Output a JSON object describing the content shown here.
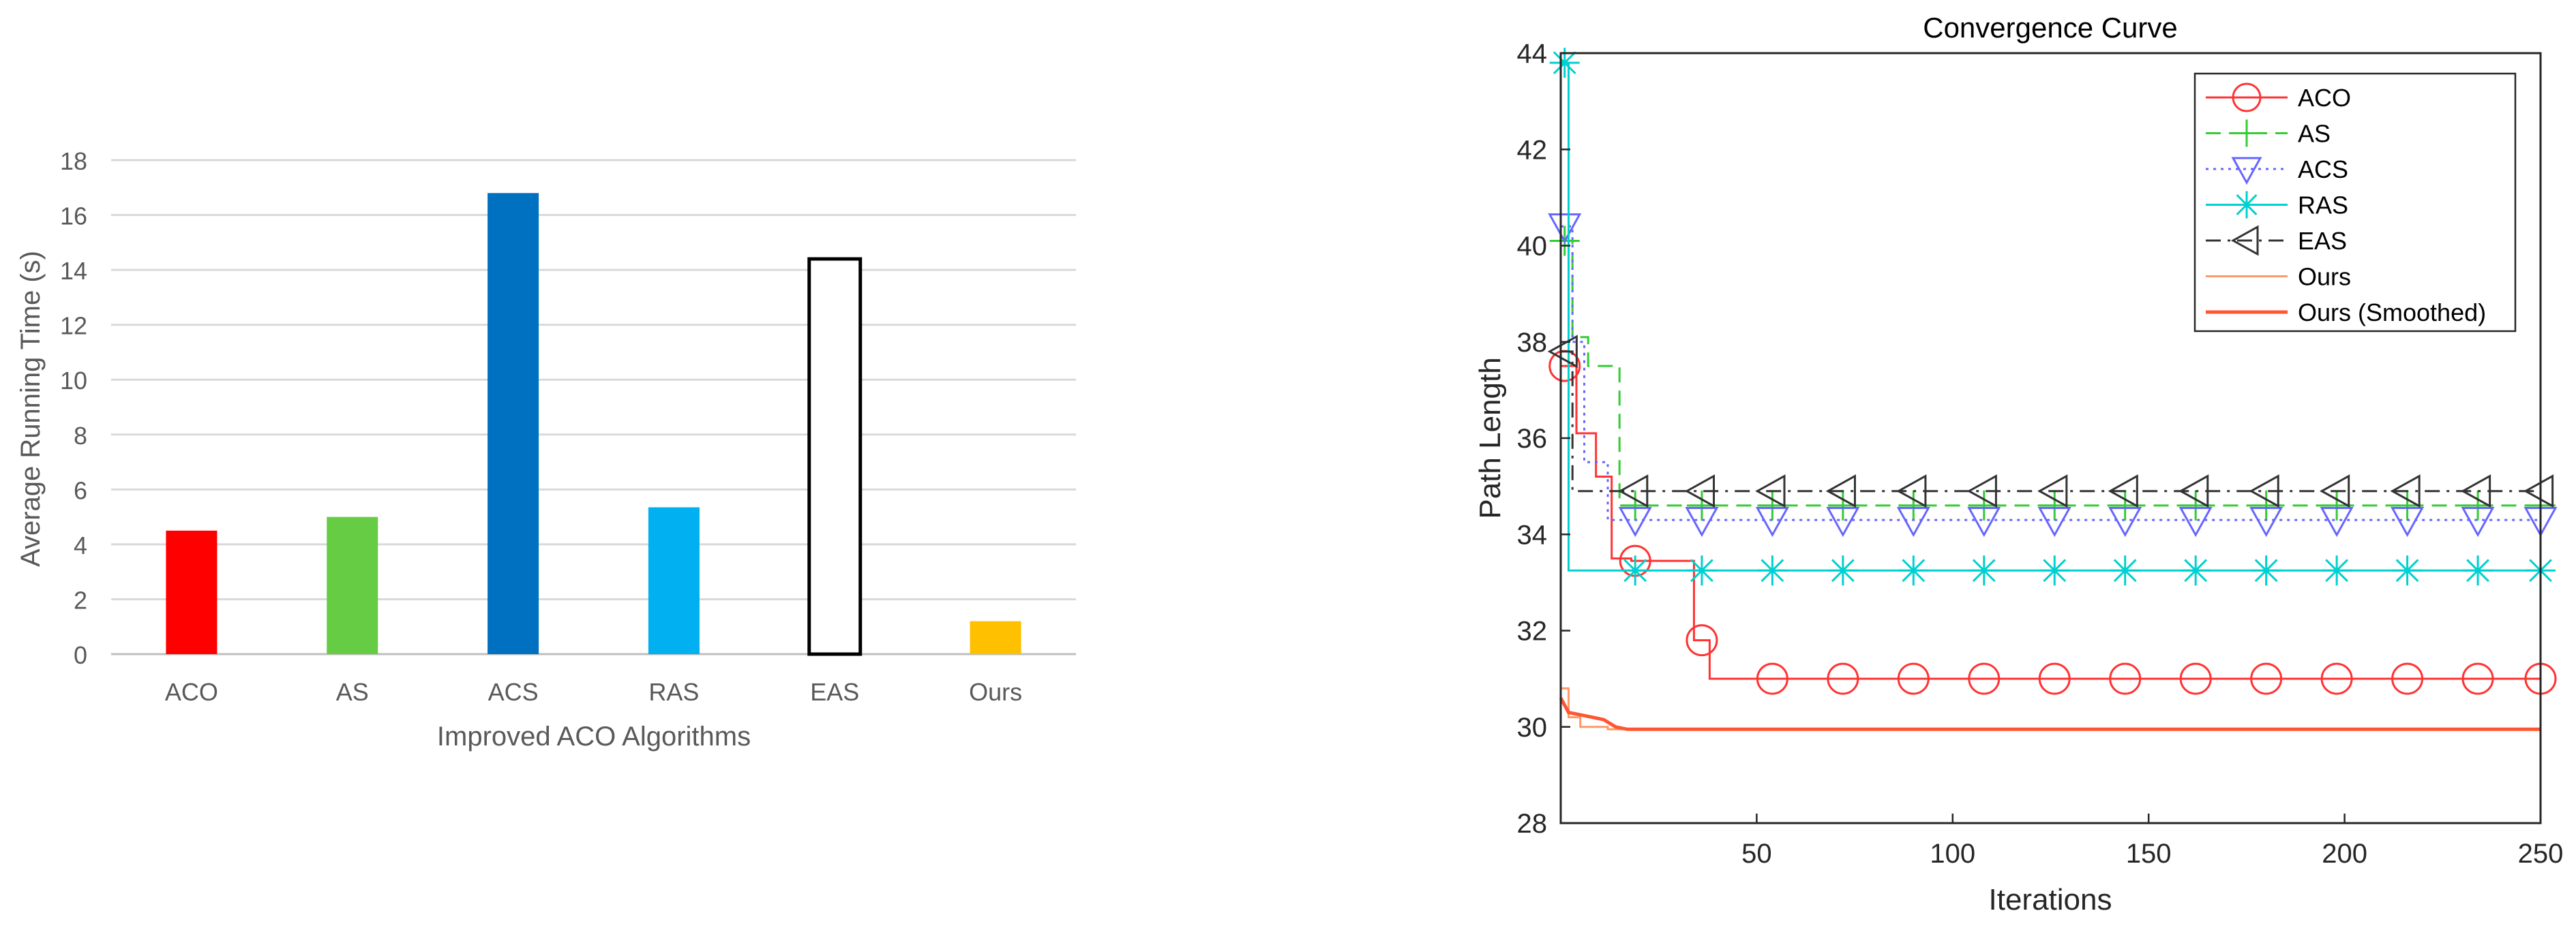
{
  "chart_data": [
    {
      "type": "bar",
      "title": "",
      "xlabel": "Improved ACO Algorithms",
      "ylabel": "Average Running Time (s)",
      "ylim": [
        0,
        18
      ],
      "yticks": [
        0,
        2,
        4,
        6,
        8,
        10,
        12,
        14,
        16,
        18
      ],
      "grid": true,
      "categories": [
        "ACO",
        "AS",
        "ACS",
        "RAS",
        "EAS",
        "Ours"
      ],
      "values": [
        4.5,
        5.0,
        16.8,
        5.35,
        14.4,
        1.2
      ],
      "colors": [
        "#ff0000",
        "#66cc44",
        "#0070c0",
        "#00b0f0",
        "#ffffff",
        "#ffc000"
      ],
      "outlined": [
        false,
        false,
        false,
        false,
        true,
        false
      ]
    },
    {
      "type": "line",
      "title": "Convergence Curve",
      "xlabel": "Iterations",
      "ylabel": "Path Length",
      "xlim": [
        0,
        250
      ],
      "ylim": [
        28,
        44
      ],
      "xticks": [
        50,
        100,
        150,
        200,
        250
      ],
      "yticks": [
        28,
        30,
        32,
        34,
        36,
        38,
        40,
        42,
        44
      ],
      "legend_position": "top-right",
      "series": [
        {
          "name": "ACO",
          "color": "#ff3333",
          "dash": "solid",
          "marker": "circle",
          "points": [
            [
              0,
              37.5
            ],
            [
              4,
              37.5
            ],
            [
              4,
              36.1
            ],
            [
              9,
              36.1
            ],
            [
              9,
              35.2
            ],
            [
              13,
              35.2
            ],
            [
              13,
              33.5
            ],
            [
              18,
              33.5
            ],
            [
              18,
              33.45
            ],
            [
              34,
              33.45
            ],
            [
              34,
              31.8
            ],
            [
              38,
              31.8
            ],
            [
              38,
              31.0
            ],
            [
              250,
              31.0
            ]
          ],
          "markers_x": [
            1,
            19,
            36,
            54,
            72,
            90,
            108,
            126,
            144,
            162,
            180,
            198,
            216,
            234,
            250
          ]
        },
        {
          "name": "AS",
          "color": "#33cc33",
          "dash": "long-dash",
          "marker": "plus",
          "points": [
            [
              0,
              40.1
            ],
            [
              3,
              40.1
            ],
            [
              3,
              38.1
            ],
            [
              7,
              38.1
            ],
            [
              7,
              37.5
            ],
            [
              15,
              37.5
            ],
            [
              15,
              34.6
            ],
            [
              250,
              34.6
            ]
          ],
          "markers_x": [
            1,
            19,
            36,
            54,
            72,
            90,
            108,
            126,
            144,
            162,
            180,
            198,
            216,
            234,
            250
          ]
        },
        {
          "name": "ACS",
          "color": "#6666ff",
          "dash": "dotted",
          "marker": "triangle-down",
          "points": [
            [
              0,
              40.4
            ],
            [
              3,
              40.4
            ],
            [
              3,
              38.0
            ],
            [
              6,
              38.0
            ],
            [
              6,
              35.5
            ],
            [
              12,
              35.5
            ],
            [
              12,
              34.3
            ],
            [
              250,
              34.3
            ]
          ],
          "markers_x": [
            1,
            19,
            36,
            54,
            72,
            90,
            108,
            126,
            144,
            162,
            180,
            198,
            216,
            234,
            250
          ]
        },
        {
          "name": "RAS",
          "color": "#00d0d0",
          "dash": "solid",
          "marker": "asterisk",
          "points": [
            [
              0,
              43.8
            ],
            [
              2,
              43.8
            ],
            [
              2,
              33.25
            ],
            [
              250,
              33.25
            ]
          ],
          "markers_x": [
            1,
            19,
            36,
            54,
            72,
            90,
            108,
            126,
            144,
            162,
            180,
            198,
            216,
            234,
            250
          ]
        },
        {
          "name": "EAS",
          "color": "#333333",
          "dash": "dash-dot",
          "marker": "triangle-left",
          "points": [
            [
              0,
              37.8
            ],
            [
              3,
              37.8
            ],
            [
              3,
              34.9
            ],
            [
              250,
              34.9
            ]
          ],
          "markers_x": [
            1,
            19,
            36,
            54,
            72,
            90,
            108,
            126,
            144,
            162,
            180,
            198,
            216,
            234,
            250
          ]
        },
        {
          "name": "Ours",
          "color": "#ff9966",
          "dash": "solid",
          "marker": "none",
          "points": [
            [
              0,
              30.8
            ],
            [
              2,
              30.8
            ],
            [
              2,
              30.2
            ],
            [
              5,
              30.2
            ],
            [
              5,
              30.0
            ],
            [
              12,
              30.0
            ],
            [
              12,
              29.95
            ],
            [
              250,
              29.95
            ]
          ]
        },
        {
          "name": "Ours (Smoothed)",
          "color": "#ff5533",
          "dash": "solid",
          "marker": "none",
          "points": [
            [
              0,
              30.6
            ],
            [
              2,
              30.3
            ],
            [
              5,
              30.25
            ],
            [
              8,
              30.2
            ],
            [
              11,
              30.15
            ],
            [
              14,
              30.0
            ],
            [
              17,
              29.95
            ],
            [
              250,
              29.95
            ]
          ]
        }
      ]
    }
  ]
}
